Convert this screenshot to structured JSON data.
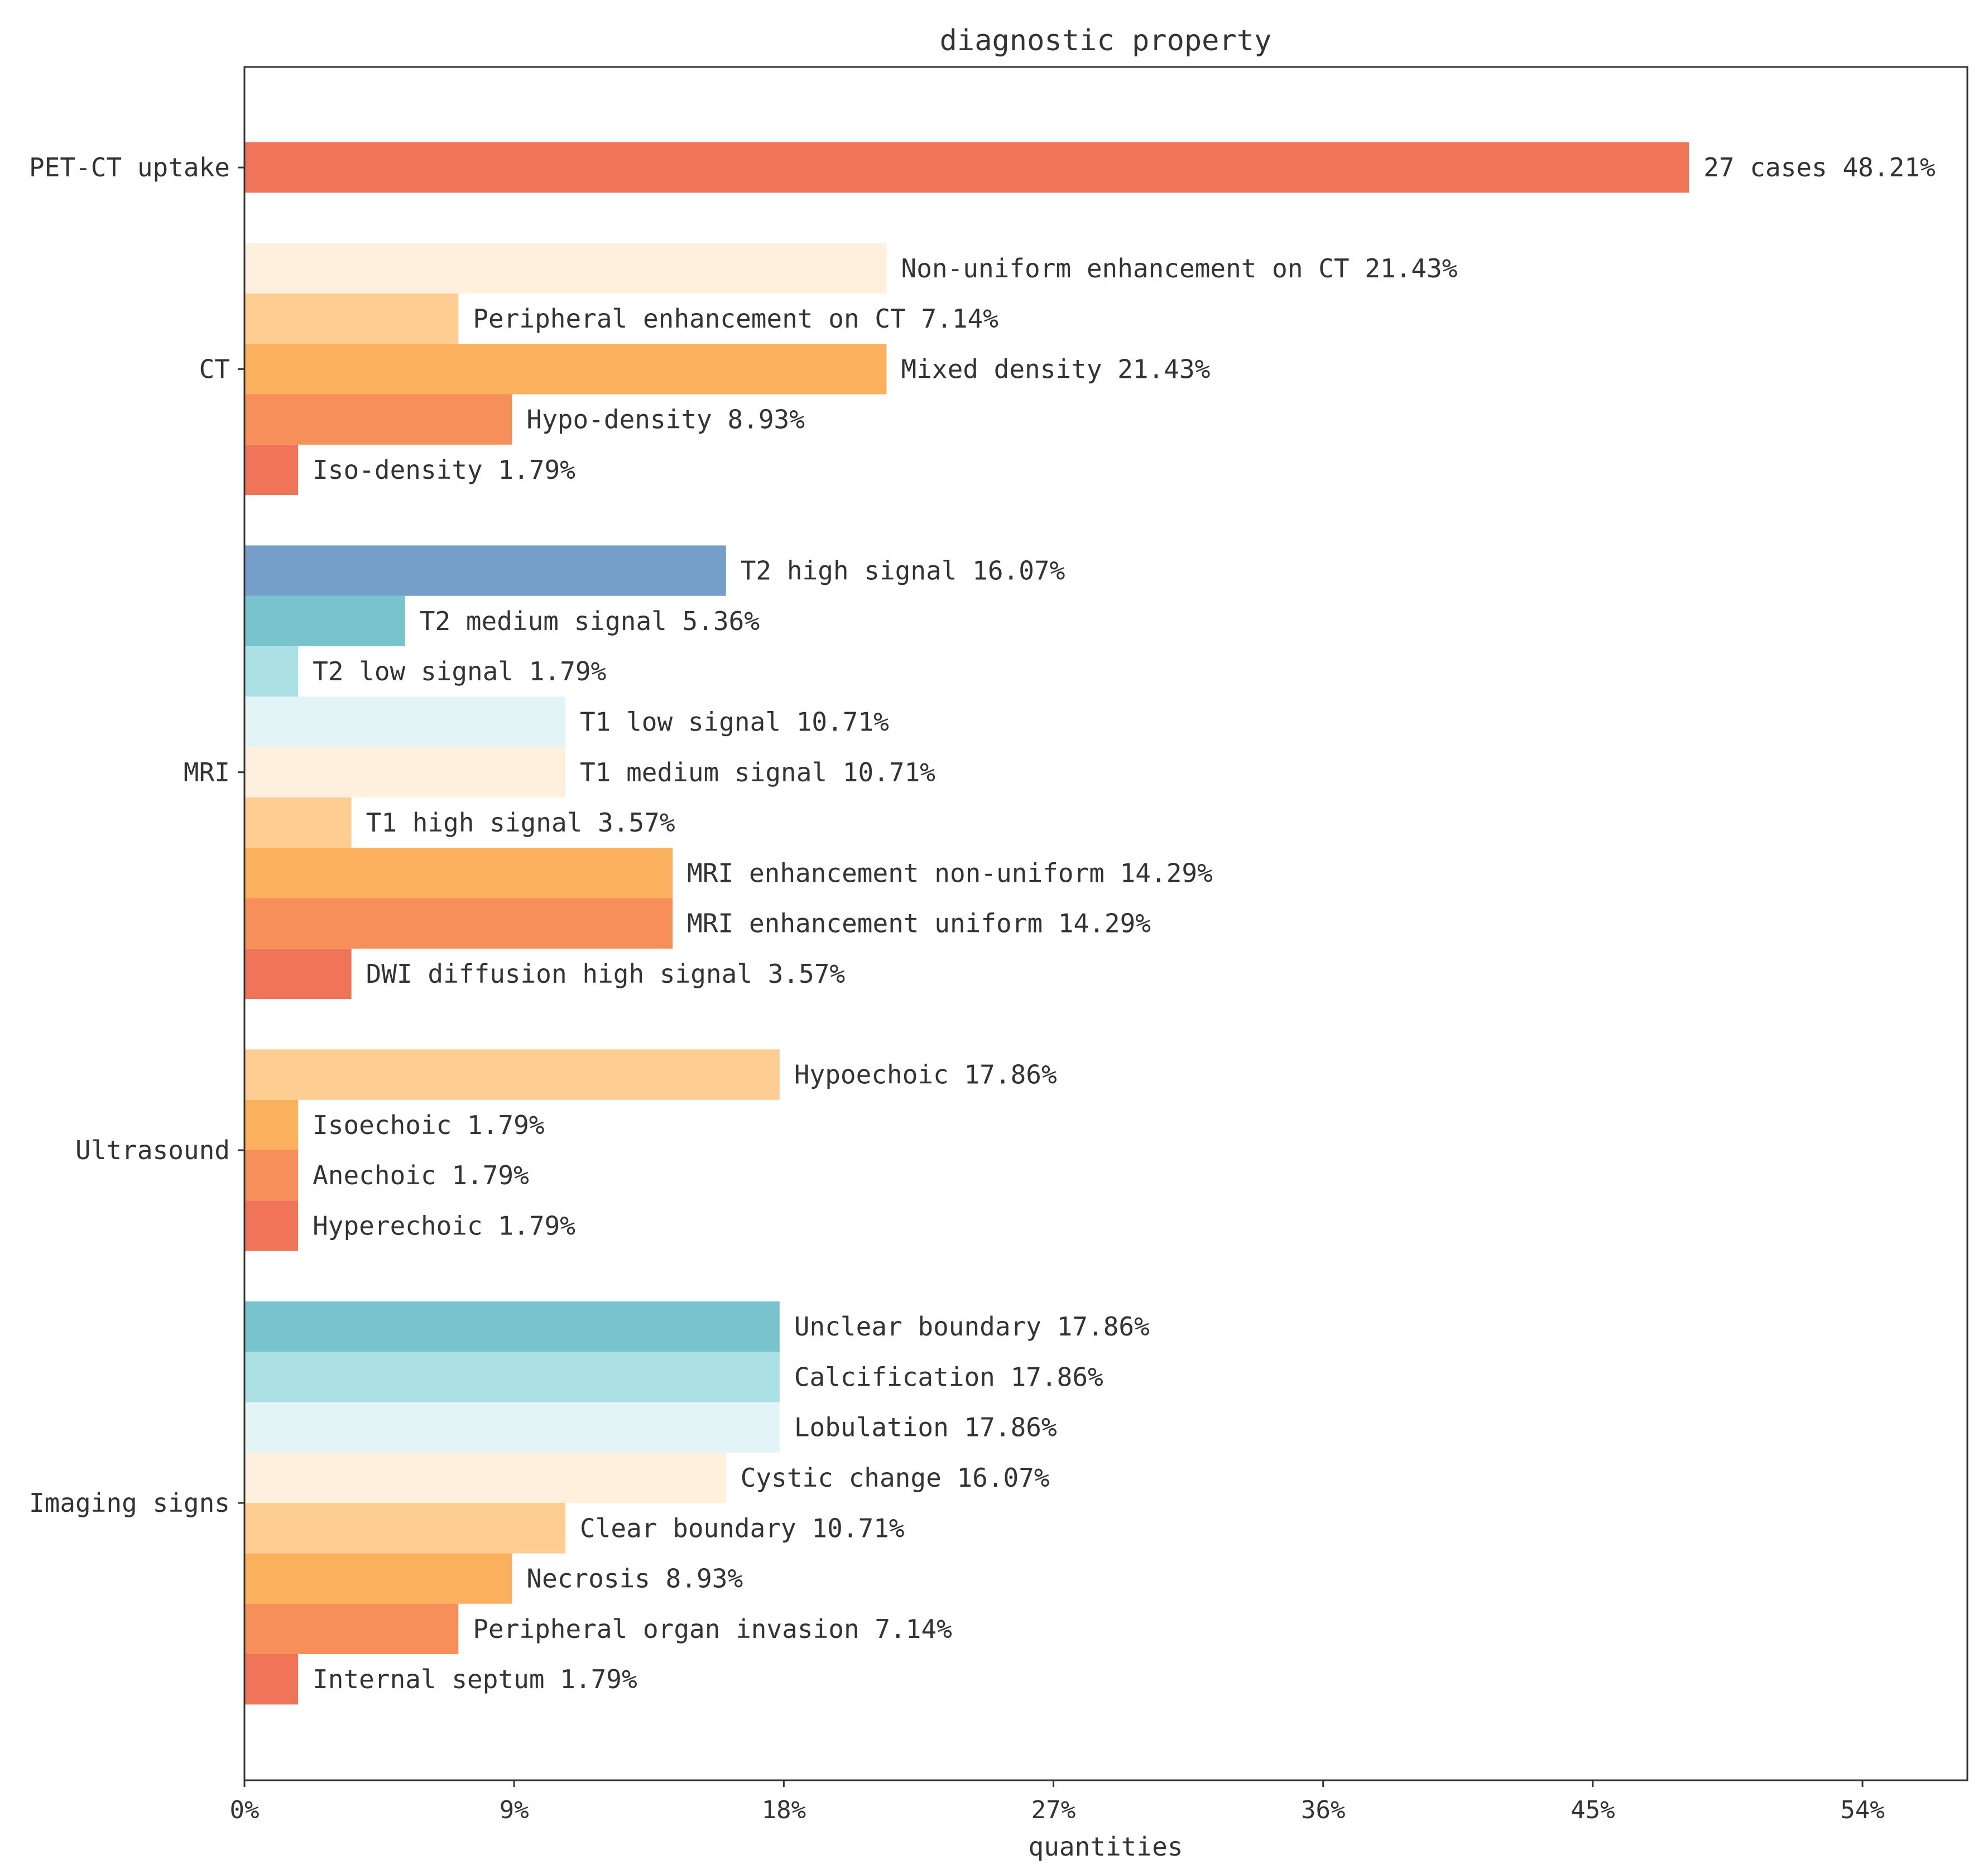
{
  "chart_data": {
    "type": "bar",
    "orientation": "horizontal",
    "title": "diagnostic property",
    "xlabel": "quantities",
    "xlim": [
      0,
      57.5
    ],
    "xticks": [
      {
        "value": 0,
        "label": "0%"
      },
      {
        "value": 9,
        "label": "9%"
      },
      {
        "value": 18,
        "label": "18%"
      },
      {
        "value": 27,
        "label": "27%"
      },
      {
        "value": 36,
        "label": "36%"
      },
      {
        "value": 45,
        "label": "45%"
      },
      {
        "value": 54,
        "label": "54%"
      }
    ],
    "groups": [
      {
        "name": "PET-CT uptake",
        "bars": [
          {
            "value": 48.21,
            "label": "27 cases 48.21%",
            "color": "#f07457"
          }
        ]
      },
      {
        "name": "CT",
        "bars": [
          {
            "value": 21.43,
            "label": "Non-uniform enhancement on CT 21.43%",
            "color": "#fef0dc"
          },
          {
            "value": 7.14,
            "label": "Peripheral enhancement on CT 7.14%",
            "color": "#fdcd91"
          },
          {
            "value": 21.43,
            "label": "Mixed density 21.43%",
            "color": "#fbb05e"
          },
          {
            "value": 8.93,
            "label": "Hypo-density 8.93%",
            "color": "#f78f5a"
          },
          {
            "value": 1.79,
            "label": "Iso-density 1.79%",
            "color": "#f07457"
          }
        ]
      },
      {
        "name": "MRI",
        "bars": [
          {
            "value": 16.07,
            "label": "T2 high signal 16.07%",
            "color": "#759fc8"
          },
          {
            "value": 5.36,
            "label": "T2 medium signal 5.36%",
            "color": "#79c3cf"
          },
          {
            "value": 1.79,
            "label": "T2 low signal 1.79%",
            "color": "#abe0e5"
          },
          {
            "value": 10.71,
            "label": "T1 low signal 10.71%",
            "color": "#e3f4f7"
          },
          {
            "value": 10.71,
            "label": "T1 medium signal 10.71%",
            "color": "#fef0dc"
          },
          {
            "value": 3.57,
            "label": "T1 high signal 3.57%",
            "color": "#fdcd91"
          },
          {
            "value": 14.29,
            "label": "MRI enhancement non-uniform 14.29%",
            "color": "#fbb05e"
          },
          {
            "value": 14.29,
            "label": "MRI enhancement uniform 14.29%",
            "color": "#f78f5a"
          },
          {
            "value": 3.57,
            "label": "DWI diffusion high signal 3.57%",
            "color": "#f07457"
          }
        ]
      },
      {
        "name": "Ultrasound",
        "bars": [
          {
            "value": 17.86,
            "label": "Hypoechoic 17.86%",
            "color": "#fdcd91"
          },
          {
            "value": 1.79,
            "label": "Isoechoic 1.79%",
            "color": "#fbb05e"
          },
          {
            "value": 1.79,
            "label": "Anechoic 1.79%",
            "color": "#f78f5a"
          },
          {
            "value": 1.79,
            "label": "Hyperechoic 1.79%",
            "color": "#f07457"
          }
        ]
      },
      {
        "name": "Imaging signs",
        "bars": [
          {
            "value": 17.86,
            "label": "Unclear boundary 17.86%",
            "color": "#79c3cf"
          },
          {
            "value": 17.86,
            "label": "Calcification 17.86%",
            "color": "#abe0e5"
          },
          {
            "value": 17.86,
            "label": "Lobulation 17.86%",
            "color": "#e3f4f7"
          },
          {
            "value": 16.07,
            "label": "Cystic change 16.07%",
            "color": "#fef0dc"
          },
          {
            "value": 10.71,
            "label": "Clear boundary 10.71%",
            "color": "#fdcd91"
          },
          {
            "value": 8.93,
            "label": "Necrosis 8.93%",
            "color": "#fbb05e"
          },
          {
            "value": 7.14,
            "label": "Peripheral organ invasion 7.14%",
            "color": "#f78f5a"
          },
          {
            "value": 1.79,
            "label": "Internal septum 1.79%",
            "color": "#f07457"
          }
        ]
      }
    ]
  }
}
